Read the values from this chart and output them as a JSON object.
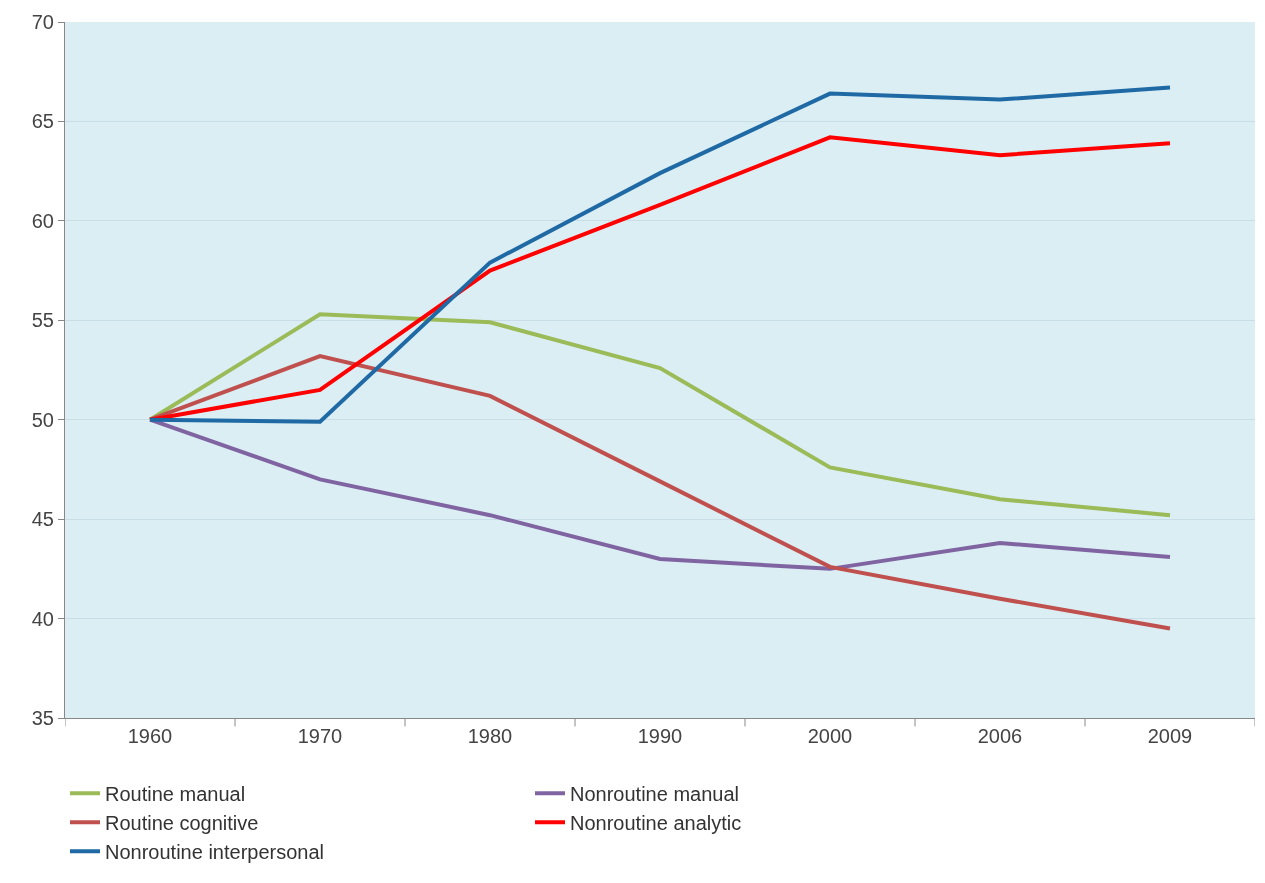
{
  "chart_data": {
    "type": "line",
    "categories": [
      "1960",
      "1970",
      "1980",
      "1990",
      "2000",
      "2006",
      "2009"
    ],
    "series": [
      {
        "name": "Routine manual",
        "color": "#9bbb59",
        "values": [
          50,
          55.3,
          54.9,
          52.6,
          47.6,
          46.0,
          45.2
        ]
      },
      {
        "name": "Nonroutine manual",
        "color": "#8064a2",
        "values": [
          50,
          47.0,
          45.2,
          43.0,
          42.5,
          43.8,
          43.1
        ]
      },
      {
        "name": "Routine cognitive",
        "color": "#c0504d",
        "values": [
          50,
          53.2,
          51.2,
          46.9,
          42.6,
          41.0,
          39.5
        ]
      },
      {
        "name": "Nonroutine analytic",
        "color": "#ff0000",
        "values": [
          50,
          51.5,
          57.5,
          60.8,
          64.2,
          63.3,
          63.9
        ]
      },
      {
        "name": "Nonroutine interpersonal",
        "color": "#1f6aa5",
        "values": [
          50,
          49.9,
          57.9,
          62.4,
          66.4,
          66.1,
          66.7
        ]
      }
    ],
    "ylim": [
      35,
      70
    ],
    "yticks": [
      35,
      40,
      45,
      50,
      55,
      60,
      65,
      70
    ],
    "grid": "y",
    "legend": "bottom",
    "marker": "none",
    "line_style": "solid"
  }
}
